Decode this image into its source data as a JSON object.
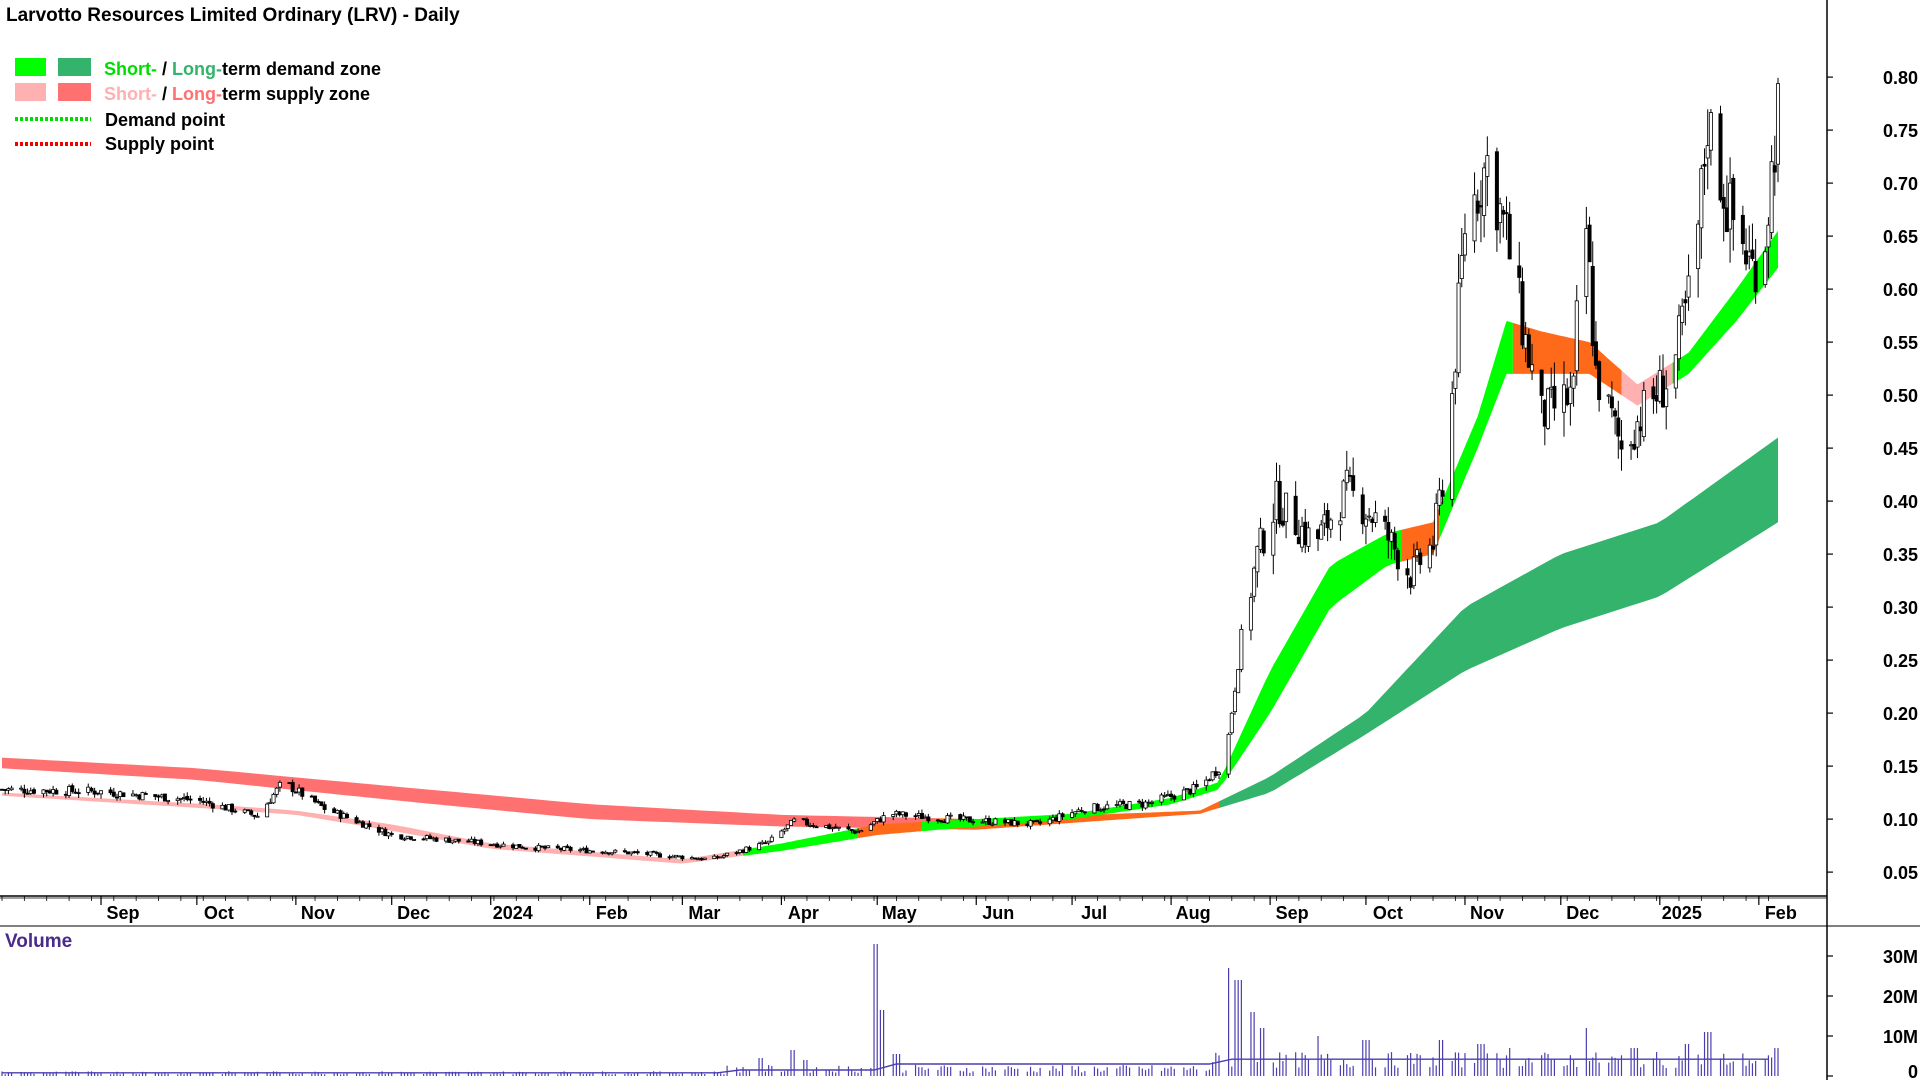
{
  "chart_data": {
    "type": "candlestick",
    "title": "Larvotto Resources Limited Ordinary (LRV) - Daily",
    "legend": {
      "placement": "top-left",
      "zones_row": {
        "short_label": "Short-",
        "sep": " / ",
        "long_label": "Long-",
        "rest": "term demand zone"
      },
      "supply_row": {
        "short_label": "Short-",
        "sep": " / ",
        "long_label": "Long-",
        "rest": "term supply zone"
      },
      "demand_point": "Demand point",
      "supply_point": "Supply point"
    },
    "x_tick_labels": [
      "Sep",
      "Oct",
      "Nov",
      "Dec",
      "2024",
      "Feb",
      "Mar",
      "Apr",
      "May",
      "Jun",
      "Jul",
      "Aug",
      "Sep",
      "Oct",
      "Nov",
      "Dec",
      "2025",
      "Feb"
    ],
    "y_tick_labels": [
      "0.80",
      "0.75",
      "0.70",
      "0.65",
      "0.60",
      "0.55",
      "0.50",
      "0.45",
      "0.40",
      "0.35",
      "0.30",
      "0.25",
      "0.20",
      "0.15",
      "0.10",
      "0.05"
    ],
    "y_ticks": [
      0.8,
      0.75,
      0.7,
      0.65,
      0.6,
      0.55,
      0.5,
      0.45,
      0.4,
      0.35,
      0.3,
      0.25,
      0.2,
      0.15,
      0.1,
      0.05
    ],
    "ylim": [
      0.035,
      0.835
    ],
    "price_path": [
      [
        "2023-08-01",
        0.128
      ],
      [
        "2023-09-01",
        0.126
      ],
      [
        "2023-10-01",
        0.118
      ],
      [
        "2023-10-20",
        0.103
      ],
      [
        "2023-10-28",
        0.135
      ],
      [
        "2023-11-10",
        0.11
      ],
      [
        "2023-12-01",
        0.085
      ],
      [
        "2023-12-20",
        0.08
      ],
      [
        "2024-01-15",
        0.073
      ],
      [
        "2024-02-15",
        0.068
      ],
      [
        "2024-03-10",
        0.062
      ],
      [
        "2024-03-28",
        0.078
      ],
      [
        "2024-04-05",
        0.098
      ],
      [
        "2024-04-25",
        0.088
      ],
      [
        "2024-05-05",
        0.105
      ],
      [
        "2024-05-25",
        0.1
      ],
      [
        "2024-06-20",
        0.095
      ],
      [
        "2024-07-05",
        0.11
      ],
      [
        "2024-07-25",
        0.115
      ],
      [
        "2024-08-10",
        0.13
      ],
      [
        "2024-08-18",
        0.155
      ],
      [
        "2024-08-22",
        0.25
      ],
      [
        "2024-08-28",
        0.35
      ],
      [
        "2024-09-03",
        0.4
      ],
      [
        "2024-09-15",
        0.36
      ],
      [
        "2024-09-25",
        0.41
      ],
      [
        "2024-10-05",
        0.38
      ],
      [
        "2024-10-15",
        0.33
      ],
      [
        "2024-10-22",
        0.36
      ],
      [
        "2024-10-27",
        0.46
      ],
      [
        "2024-11-01",
        0.66
      ],
      [
        "2024-11-08",
        0.72
      ],
      [
        "2024-11-14",
        0.65
      ],
      [
        "2024-11-20",
        0.55
      ],
      [
        "2024-11-25",
        0.48
      ],
      [
        "2024-12-05",
        0.5
      ],
      [
        "2024-12-08",
        0.7
      ],
      [
        "2024-12-12",
        0.52
      ],
      [
        "2024-12-20",
        0.45
      ],
      [
        "2024-12-28",
        0.49
      ],
      [
        "2025-01-05",
        0.52
      ],
      [
        "2025-01-12",
        0.62
      ],
      [
        "2025-01-16",
        0.76
      ],
      [
        "2025-01-22",
        0.68
      ],
      [
        "2025-01-30",
        0.62
      ],
      [
        "2025-02-03",
        0.65
      ],
      [
        "2025-02-07",
        0.77
      ]
    ],
    "short_term_zone": [
      [
        "2023-08-01",
        0.125,
        0.122
      ],
      [
        "2023-10-10",
        0.113,
        0.109
      ],
      [
        "2023-11-01",
        0.108,
        0.104
      ],
      [
        "2023-12-01",
        0.095,
        0.089
      ],
      [
        "2024-01-01",
        0.077,
        0.072
      ],
      [
        "2024-03-01",
        0.062,
        0.058
      ],
      [
        "2024-04-01",
        0.077,
        0.07
      ],
      [
        "2024-05-01",
        0.095,
        0.085
      ],
      [
        "2024-06-01",
        0.1,
        0.093
      ],
      [
        "2024-07-01",
        0.105,
        0.1
      ],
      [
        "2024-08-01",
        0.12,
        0.114
      ],
      [
        "2024-08-16",
        0.135,
        0.128
      ],
      [
        "2024-09-01",
        0.24,
        0.2
      ],
      [
        "2024-09-20",
        0.34,
        0.3
      ],
      [
        "2024-10-08",
        0.37,
        0.34
      ],
      [
        "2024-10-22",
        0.38,
        0.35
      ],
      [
        "2024-11-05",
        0.48,
        0.45
      ],
      [
        "2024-11-14",
        0.57,
        0.52
      ],
      [
        "2024-11-25",
        0.56,
        0.52
      ],
      [
        "2024-12-10",
        0.55,
        0.52
      ],
      [
        "2024-12-25",
        0.51,
        0.49
      ],
      [
        "2025-01-10",
        0.54,
        0.52
      ],
      [
        "2025-01-25",
        0.6,
        0.57
      ],
      [
        "2025-02-07",
        0.655,
        0.62
      ]
    ],
    "long_term_zone": [
      [
        "2023-08-01",
        0.158,
        0.148
      ],
      [
        "2023-10-01",
        0.148,
        0.137
      ],
      [
        "2023-12-01",
        0.131,
        0.118
      ],
      [
        "2024-02-01",
        0.114,
        0.1
      ],
      [
        "2024-04-01",
        0.104,
        0.093
      ],
      [
        "2024-06-01",
        0.1,
        0.09
      ],
      [
        "2024-08-10",
        0.108,
        0.105
      ],
      [
        "2024-09-01",
        0.14,
        0.125
      ],
      [
        "2024-10-01",
        0.2,
        0.18
      ],
      [
        "2024-11-01",
        0.3,
        0.24
      ],
      [
        "2024-12-01",
        0.35,
        0.28
      ],
      [
        "2025-01-01",
        0.38,
        0.31
      ],
      [
        "2025-02-07",
        0.46,
        0.38
      ]
    ],
    "volume_series": {
      "name": "Volume",
      "y_tick_labels": [
        "30M",
        "20M",
        "10M",
        "0"
      ],
      "y_ticks": [
        30,
        20,
        10,
        0
      ],
      "ylim": [
        0,
        34
      ],
      "spikes": [
        [
          "2024-03-25",
          4.5
        ],
        [
          "2024-04-05",
          6.5
        ],
        [
          "2024-04-08",
          4.0
        ],
        [
          "2024-05-01",
          33.0
        ],
        [
          "2024-05-03",
          16.5
        ],
        [
          "2024-05-07",
          5.5
        ],
        [
          "2024-08-18",
          27.0
        ],
        [
          "2024-08-22",
          24.0
        ],
        [
          "2024-08-26",
          16.0
        ],
        [
          "2024-08-30",
          12.0
        ],
        [
          "2024-09-15",
          10.0
        ],
        [
          "2024-10-01",
          9.0
        ],
        [
          "2024-10-25",
          9.0
        ],
        [
          "2024-11-06",
          8.0
        ],
        [
          "2024-11-16",
          7.0
        ],
        [
          "2024-12-08",
          12.0
        ],
        [
          "2024-12-24",
          7.0
        ],
        [
          "2025-01-10",
          8.0
        ],
        [
          "2025-01-16",
          11.0
        ],
        [
          "2025-02-07",
          7.0
        ]
      ]
    },
    "colors": {
      "short_demand": "#00ff00",
      "long_demand": "#33b36b",
      "short_supply": "#ffb0b0",
      "long_supply": "#ff7070",
      "transition": "#ff6a1a",
      "volume": "#4b3fb0",
      "demand_point": "#00dd00",
      "supply_point": "#ee0000",
      "volume_label": "#4b2a8a"
    }
  }
}
